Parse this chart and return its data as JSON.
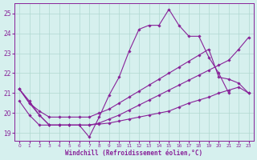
{
  "xlabel": "Windchill (Refroidissement éolien,°C)",
  "xlim": [
    -0.5,
    23.5
  ],
  "ylim": [
    18.6,
    25.5
  ],
  "yticks": [
    19,
    20,
    21,
    22,
    23,
    24,
    25
  ],
  "xticks": [
    0,
    1,
    2,
    3,
    4,
    5,
    6,
    7,
    8,
    9,
    10,
    11,
    12,
    13,
    14,
    15,
    16,
    17,
    18,
    19,
    20,
    21,
    22,
    23
  ],
  "bg_color": "#d6f0ee",
  "grid_color": "#b0d8d0",
  "line_color": "#882299",
  "lines": [
    {
      "x": [
        0,
        1,
        2,
        3,
        4,
        5,
        6,
        7,
        8,
        9,
        10,
        11,
        12,
        13,
        14,
        15,
        16,
        17,
        18,
        19,
        20,
        21
      ],
      "y": [
        21.2,
        20.6,
        19.9,
        19.4,
        19.4,
        19.4,
        19.4,
        18.8,
        19.8,
        20.9,
        21.8,
        23.1,
        24.2,
        24.4,
        24.4,
        25.2,
        24.4,
        23.85,
        23.85,
        22.8,
        22.0,
        21.0
      ]
    },
    {
      "x": [
        0,
        1,
        2,
        3,
        4,
        5,
        6,
        7,
        8,
        9,
        10,
        11,
        12,
        13,
        14,
        15,
        16,
        17,
        18,
        19,
        20,
        21,
        22,
        23
      ],
      "y": [
        21.2,
        20.5,
        20.1,
        19.8,
        19.8,
        19.8,
        19.8,
        19.8,
        20.0,
        20.2,
        20.5,
        20.8,
        21.1,
        21.4,
        21.7,
        22.0,
        22.3,
        22.6,
        22.9,
        23.2,
        21.8,
        21.7,
        21.5,
        21.0
      ]
    },
    {
      "x": [
        0,
        1,
        2,
        3,
        4,
        5,
        6,
        7,
        8,
        9,
        10,
        11,
        12,
        13,
        14,
        15,
        16,
        17,
        18,
        19,
        20,
        21,
        22,
        23
      ],
      "y": [
        21.2,
        20.5,
        19.9,
        19.4,
        19.4,
        19.4,
        19.4,
        19.4,
        19.5,
        19.7,
        19.9,
        20.15,
        20.4,
        20.65,
        20.9,
        21.15,
        21.4,
        21.65,
        21.9,
        22.15,
        22.4,
        22.65,
        23.2,
        23.8
      ]
    },
    {
      "x": [
        0,
        1,
        2,
        3,
        4,
        5,
        6,
        7,
        8,
        9,
        10,
        11,
        12,
        13,
        14,
        15,
        16,
        17,
        18,
        19,
        20,
        21,
        22,
        23
      ],
      "y": [
        20.6,
        19.9,
        19.4,
        19.4,
        19.4,
        19.4,
        19.4,
        19.4,
        19.45,
        19.5,
        19.6,
        19.7,
        19.8,
        19.9,
        20.0,
        20.1,
        20.3,
        20.5,
        20.65,
        20.8,
        21.0,
        21.15,
        21.3,
        21.0
      ]
    }
  ]
}
